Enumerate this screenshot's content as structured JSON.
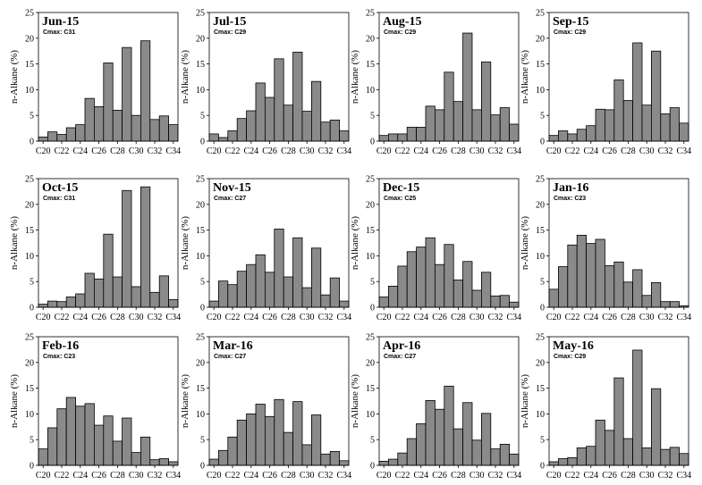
{
  "chart_data": {
    "type": "bar",
    "layout": "4x3 grid of small multiples",
    "ylabel": "n-Alkane (%)",
    "ylim": [
      0,
      25
    ],
    "yticks": [
      0,
      5,
      10,
      15,
      20,
      25
    ],
    "categories": [
      "C20",
      "C21",
      "C22",
      "C23",
      "C24",
      "C25",
      "C26",
      "C27",
      "C28",
      "C29",
      "C30",
      "C31",
      "C32",
      "C33",
      "C34"
    ],
    "xtick_labels": [
      "C20",
      "C22",
      "C24",
      "C26",
      "C28",
      "C30",
      "C32",
      "C34"
    ],
    "charts": [
      {
        "title": "Jun-15",
        "cmax": "Cmax: C31",
        "values": [
          0.8,
          1.8,
          1.3,
          2.6,
          3.2,
          8.3,
          6.7,
          15.2,
          6.0,
          18.2,
          5.0,
          19.5,
          4.2,
          4.9,
          3.2
        ]
      },
      {
        "title": "Jul-15",
        "cmax": "Cmax: C29",
        "values": [
          1.4,
          0.7,
          2.0,
          4.4,
          5.9,
          11.3,
          8.5,
          16.0,
          7.0,
          17.3,
          5.8,
          11.6,
          3.7,
          4.1,
          2.0
        ]
      },
      {
        "title": "Aug-15",
        "cmax": "Cmax: C29",
        "values": [
          1.1,
          1.4,
          1.4,
          2.7,
          2.7,
          6.8,
          6.1,
          13.4,
          7.7,
          21.0,
          6.1,
          15.4,
          5.1,
          6.5,
          3.3
        ]
      },
      {
        "title": "Sep-15",
        "cmax": "Cmax: C29",
        "values": [
          1.1,
          2.0,
          1.4,
          2.3,
          3.0,
          6.2,
          6.1,
          11.9,
          7.9,
          19.1,
          7.0,
          17.5,
          5.3,
          6.5,
          3.5
        ]
      },
      {
        "title": "Oct-15",
        "cmax": "Cmax: C31",
        "values": [
          0.6,
          1.2,
          1.1,
          2.0,
          2.6,
          6.6,
          5.5,
          14.2,
          5.9,
          22.7,
          4.0,
          23.4,
          2.9,
          6.1,
          1.5
        ]
      },
      {
        "title": "Nov-15",
        "cmax": "Cmax: C27",
        "values": [
          1.2,
          5.1,
          4.4,
          7.0,
          8.3,
          10.2,
          6.8,
          15.2,
          5.9,
          13.5,
          3.8,
          11.5,
          2.4,
          5.7,
          1.2
        ]
      },
      {
        "title": "Dec-15",
        "cmax": "Cmax: C25",
        "values": [
          2.0,
          4.1,
          8.0,
          10.8,
          11.7,
          13.5,
          8.3,
          12.2,
          5.3,
          8.9,
          3.3,
          6.8,
          2.2,
          2.3,
          1.0
        ]
      },
      {
        "title": "Jan-16",
        "cmax": "Cmax: C23",
        "values": [
          3.5,
          7.9,
          12.1,
          14.0,
          12.4,
          13.2,
          8.1,
          8.8,
          4.9,
          7.3,
          2.3,
          4.8,
          1.1,
          1.1,
          0.3
        ]
      },
      {
        "title": "Feb-16",
        "cmax": "Cmax: C23",
        "values": [
          3.2,
          7.3,
          11.0,
          13.2,
          11.5,
          12.0,
          7.8,
          9.6,
          4.7,
          9.2,
          2.5,
          5.5,
          1.1,
          1.3,
          0.7
        ]
      },
      {
        "title": "Mar-16",
        "cmax": "Cmax: C27",
        "values": [
          1.2,
          2.9,
          5.5,
          8.8,
          10.0,
          11.9,
          9.5,
          12.8,
          6.4,
          12.4,
          4.0,
          9.8,
          2.2,
          2.7,
          0.9
        ]
      },
      {
        "title": "Apr-16",
        "cmax": "Cmax: C27",
        "values": [
          0.8,
          1.2,
          2.4,
          5.2,
          8.1,
          12.6,
          10.9,
          15.4,
          7.1,
          12.2,
          4.9,
          10.1,
          3.2,
          4.1,
          2.2
        ]
      },
      {
        "title": "May-16",
        "cmax": "Cmax: C29",
        "values": [
          0.7,
          1.3,
          1.5,
          3.4,
          3.7,
          8.8,
          6.8,
          17.0,
          5.2,
          22.4,
          3.4,
          14.9,
          3.1,
          3.5,
          2.3
        ]
      }
    ]
  }
}
